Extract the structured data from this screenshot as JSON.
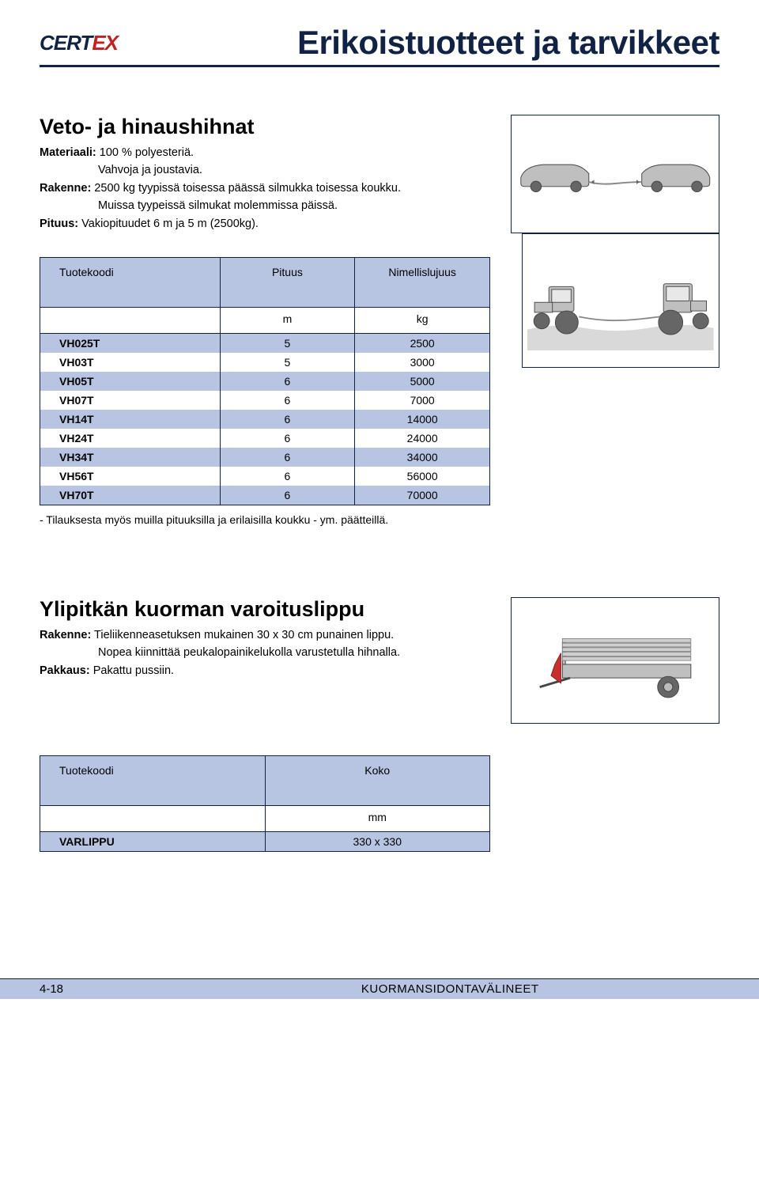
{
  "logo": {
    "part1": "CERT",
    "part2": "EX"
  },
  "page_title": "Erikoistuotteet ja tarvikkeet",
  "section1": {
    "title": "Veto- ja hinaushihnat",
    "spec_lines": [
      {
        "label": "Materiaali:",
        "text": " 100 % polyesteriä."
      },
      {
        "label": "",
        "text": "Vahvoja ja joustavia.",
        "indent": true
      },
      {
        "label": "Rakenne:",
        "text": " 2500 kg tyypissä toisessa päässä silmukka toisessa koukku."
      },
      {
        "label": "",
        "text": "Muissa tyypeissä silmukat molemmissa päissä.",
        "indent": true
      },
      {
        "label": "Pituus:",
        "text": " Vakiopituudet 6 m ja 5 m (2500kg)."
      }
    ],
    "table": {
      "headers": [
        "Tuotekoodi",
        "Pituus",
        "Nimellislujuus"
      ],
      "units": [
        "",
        "m",
        "kg"
      ],
      "col_widths": [
        "40%",
        "30%",
        "30%"
      ],
      "rows": [
        [
          "VH025T",
          "5",
          "2500"
        ],
        [
          "VH03T",
          "5",
          "3000"
        ],
        [
          "VH05T",
          "6",
          "5000"
        ],
        [
          "VH07T",
          "6",
          "7000"
        ],
        [
          "VH14T",
          "6",
          "14000"
        ],
        [
          "VH24T",
          "6",
          "24000"
        ],
        [
          "VH34T",
          "6",
          "34000"
        ],
        [
          "VH56T",
          "6",
          "56000"
        ],
        [
          "VH70T",
          "6",
          "70000"
        ]
      ],
      "header_bg": "#b7c5e3",
      "stripe_bg": "#b7c5e3",
      "border_color": "#112244"
    },
    "note": "- Tilauksesta myös muilla pituuksilla ja erilaisilla koukku - ym. päätteillä."
  },
  "section2": {
    "title": "Ylipitkän kuorman varoituslippu",
    "spec_lines": [
      {
        "label": "Rakenne:",
        "text": " Tieliikenneasetuksen mukainen 30 x 30 cm punainen lippu."
      },
      {
        "label": "",
        "text": "Nopea kiinnittää peukalopainikelukolla varustetulla hihnalla.",
        "indent": true
      },
      {
        "label": "Pakkaus:",
        "text": " Pakattu pussiin."
      }
    ],
    "table": {
      "headers": [
        "Tuotekoodi",
        "Koko"
      ],
      "units": [
        "",
        "mm"
      ],
      "col_widths": [
        "50%",
        "50%"
      ],
      "rows": [
        [
          "VARLIPPU",
          "330 x 330"
        ]
      ],
      "header_bg": "#b7c5e3",
      "stripe_bg": "#b7c5e3",
      "border_color": "#112244"
    }
  },
  "footer": {
    "page_number": "4-18",
    "title": "KUORMANSIDONTAVÄLINEET"
  },
  "colors": {
    "brand_dark": "#112244",
    "brand_red": "#c02020",
    "panel_blue": "#b7c5e3"
  }
}
